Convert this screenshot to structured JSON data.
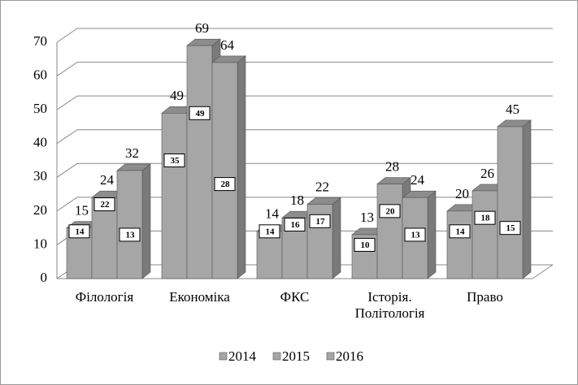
{
  "chart_data": {
    "type": "bar3d",
    "categories": [
      "Філологія",
      "Економіка",
      "ФКС",
      "Історія. Політологія",
      "Право"
    ],
    "series": [
      {
        "name": "2014",
        "color": "#a6a6a6",
        "values": [
          15,
          49,
          14,
          13,
          20
        ],
        "inner_values": [
          14,
          35,
          14,
          10,
          14
        ]
      },
      {
        "name": "2015",
        "color": "#a6a6a6",
        "values": [
          24,
          69,
          18,
          28,
          26
        ],
        "inner_values": [
          22,
          49,
          16,
          20,
          18
        ]
      },
      {
        "name": "2016",
        "color": "#a6a6a6",
        "values": [
          32,
          64,
          22,
          24,
          45
        ],
        "inner_values": [
          13,
          28,
          17,
          13,
          15
        ]
      }
    ],
    "ylim": [
      0,
      70
    ],
    "yticks": [
      0,
      10,
      20,
      30,
      40,
      50,
      60,
      70
    ],
    "grid": true,
    "legend": "bottom"
  }
}
